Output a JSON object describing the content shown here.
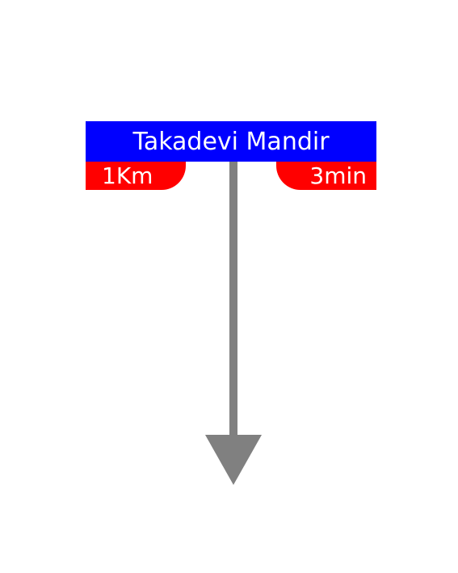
{
  "sign": {
    "title": "Takadevi Mandir",
    "distance": "1Km",
    "time": "3min"
  },
  "colors": {
    "title_bg": "#0000ff",
    "tab_bg": "#ff0000",
    "text": "#ffffff",
    "arrow": "#808080"
  },
  "icons": {
    "arrow": "down-arrow-icon"
  }
}
